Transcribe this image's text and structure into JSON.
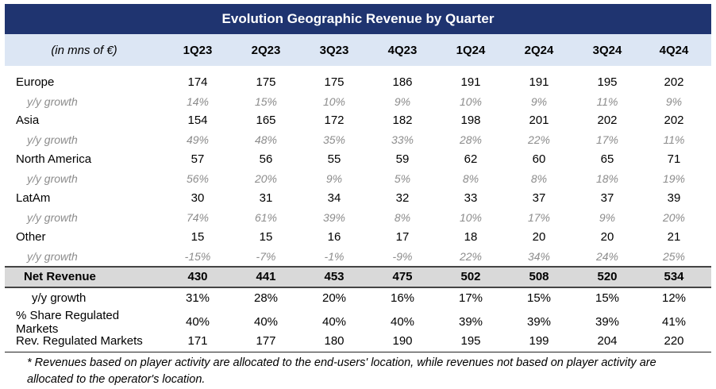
{
  "title": "Evolution Geographic Revenue by Quarter",
  "header": {
    "unit_label": "(in mns of €)"
  },
  "chart_data": {
    "type": "table",
    "title": "Evolution Geographic Revenue by Quarter",
    "unit_label": "(in mns of €)",
    "columns": [
      "1Q23",
      "2Q23",
      "3Q23",
      "4Q23",
      "1Q24",
      "2Q24",
      "3Q24",
      "4Q24"
    ],
    "rows": [
      {
        "label": "Europe",
        "values": [
          "174",
          "175",
          "175",
          "186",
          "191",
          "191",
          "195",
          "202"
        ],
        "style": "main"
      },
      {
        "label": "y/y growth",
        "values": [
          "14%",
          "15%",
          "10%",
          "9%",
          "10%",
          "9%",
          "11%",
          "9%"
        ],
        "style": "growth"
      },
      {
        "label": "Asia",
        "values": [
          "154",
          "165",
          "172",
          "182",
          "198",
          "201",
          "202",
          "202"
        ],
        "style": "main"
      },
      {
        "label": "y/y growth",
        "values": [
          "49%",
          "48%",
          "35%",
          "33%",
          "28%",
          "22%",
          "17%",
          "11%"
        ],
        "style": "growth"
      },
      {
        "label": "North America",
        "values": [
          "57",
          "56",
          "55",
          "59",
          "62",
          "60",
          "65",
          "71"
        ],
        "style": "main"
      },
      {
        "label": "y/y growth",
        "values": [
          "56%",
          "20%",
          "9%",
          "5%",
          "8%",
          "8%",
          "18%",
          "19%"
        ],
        "style": "growth"
      },
      {
        "label": "LatAm",
        "values": [
          "30",
          "31",
          "34",
          "32",
          "33",
          "37",
          "37",
          "39"
        ],
        "style": "main"
      },
      {
        "label": "y/y growth",
        "values": [
          "74%",
          "61%",
          "39%",
          "8%",
          "10%",
          "17%",
          "9%",
          "20%"
        ],
        "style": "growth"
      },
      {
        "label": "Other",
        "values": [
          "15",
          "15",
          "16",
          "17",
          "18",
          "20",
          "20",
          "21"
        ],
        "style": "main"
      },
      {
        "label": "y/y growth",
        "values": [
          "-15%",
          "-7%",
          "-1%",
          "-9%",
          "22%",
          "34%",
          "24%",
          "25%"
        ],
        "style": "growth"
      },
      {
        "label": "Net Revenue",
        "values": [
          "430",
          "441",
          "453",
          "475",
          "502",
          "508",
          "520",
          "534"
        ],
        "style": "net"
      },
      {
        "label": "y/y growth",
        "values": [
          "31%",
          "28%",
          "20%",
          "16%",
          "17%",
          "15%",
          "15%",
          "12%"
        ],
        "style": "net-growth"
      },
      {
        "label": "% Share Regulated Markets",
        "values": [
          "40%",
          "40%",
          "40%",
          "40%",
          "39%",
          "39%",
          "39%",
          "41%"
        ],
        "style": "main"
      },
      {
        "label": "Rev. Regulated Markets",
        "values": [
          "171",
          "177",
          "180",
          "190",
          "195",
          "199",
          "204",
          "220"
        ],
        "style": "main"
      }
    ]
  },
  "footnote": "* Revenues based on player activity are allocated to the end-users' location, while revenues not based on player activity are allocated to the operator's location.",
  "colors": {
    "title_bg": "#1f3470",
    "header_bg": "#dce6f4",
    "net_bg": "#d9d9d9",
    "growth_text": "#8c8c8c"
  }
}
